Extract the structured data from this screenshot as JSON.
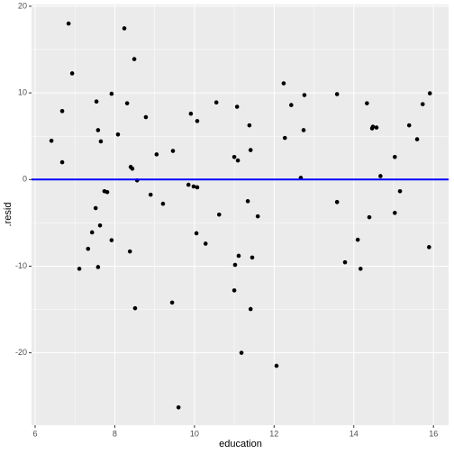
{
  "chart_data": {
    "type": "scatter",
    "x_label": "education",
    "y_label": ".resid",
    "x": [
      6.41,
      6.68,
      6.68,
      6.84,
      6.93,
      7.11,
      7.33,
      7.43,
      7.52,
      7.54,
      7.58,
      7.58,
      7.63,
      7.65,
      7.74,
      7.81,
      7.92,
      7.92,
      8.08,
      8.24,
      8.31,
      8.38,
      8.4,
      8.44,
      8.49,
      8.51,
      8.56,
      8.78,
      8.9,
      9.05,
      9.21,
      9.44,
      9.46,
      9.6,
      9.85,
      9.91,
      9.98,
      10.07,
      10.07,
      10.05,
      10.28,
      10.55,
      10.62,
      11.0,
      11.0,
      11.02,
      11.07,
      11.09,
      11.11,
      11.18,
      11.34,
      11.38,
      11.41,
      11.41,
      11.45,
      11.59,
      12.06,
      12.24,
      12.27,
      12.43,
      12.67,
      12.74,
      12.76,
      13.58,
      13.58,
      13.78,
      14.1,
      14.17,
      14.33,
      14.39,
      14.46,
      14.48,
      14.57,
      14.67,
      15.03,
      15.03,
      15.16,
      15.39,
      15.59,
      15.73,
      15.91,
      15.89
    ],
    "values": [
      4.47,
      7.9,
      2.0,
      18.0,
      12.25,
      -10.3,
      -8.0,
      -6.1,
      -3.3,
      9.0,
      5.7,
      -10.1,
      -5.3,
      4.4,
      -1.35,
      -1.45,
      9.9,
      -7.0,
      5.2,
      17.45,
      8.8,
      -8.3,
      1.45,
      1.25,
      13.9,
      -14.85,
      -0.1,
      7.2,
      -1.75,
      2.9,
      -2.8,
      -14.2,
      3.3,
      -26.3,
      -0.6,
      7.6,
      -0.8,
      -0.9,
      6.75,
      -6.2,
      -7.4,
      8.9,
      -4.05,
      2.6,
      -12.8,
      -9.85,
      8.4,
      2.2,
      -8.8,
      -20.0,
      -2.5,
      6.25,
      3.4,
      -14.95,
      -9.0,
      -4.25,
      -21.5,
      11.1,
      4.8,
      8.6,
      0.2,
      5.7,
      9.75,
      9.85,
      -2.6,
      -9.55,
      -6.95,
      -10.3,
      8.8,
      -4.35,
      5.9,
      6.1,
      6.0,
      0.4,
      2.6,
      -3.85,
      -1.35,
      6.25,
      4.65,
      8.7,
      9.95,
      -7.8
    ],
    "color": "#000000",
    "xlim": [
      5.91,
      16.38
    ],
    "xticks": [
      6,
      8,
      10,
      12,
      14,
      16
    ],
    "ylim": [
      -28.35,
      20.2
    ],
    "yticks": [
      -20,
      -10,
      0,
      10,
      20
    ],
    "reference_line": 0,
    "reference_color": "#0000ff",
    "grid": true
  }
}
